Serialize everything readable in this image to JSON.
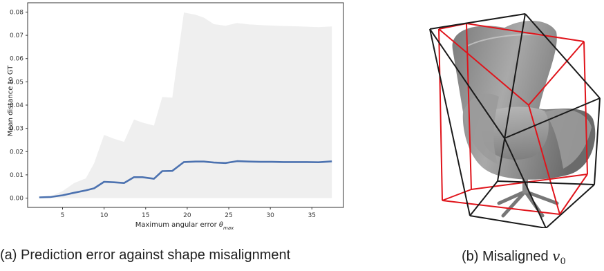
{
  "chart_data": {
    "type": "line",
    "xlabel_prefix": "Maximum angular error ",
    "xlabel_symbol": "θ",
    "xlabel_subscript": "max",
    "ylabel": "Mean distance to GT",
    "xlim": [
      0.8,
      38.8
    ],
    "ylim": [
      -0.004,
      0.084
    ],
    "xticks": [
      5,
      10,
      15,
      20,
      25,
      30,
      35
    ],
    "yticks": [
      0.0,
      0.01,
      0.02,
      0.03,
      0.04,
      0.05,
      0.06,
      0.07,
      0.08
    ],
    "ytick_labels": [
      "0.00",
      "0.01",
      "0.02",
      "0.03",
      "0.04",
      "0.05",
      "0.06",
      "0.07",
      "0.08"
    ],
    "grid": false,
    "x": [
      2.2,
      3.6,
      5.0,
      6.4,
      7.8,
      8.8,
      10.0,
      11.2,
      12.4,
      13.6,
      14.6,
      16.0,
      17.0,
      18.2,
      19.6,
      21.0,
      22.0,
      23.2,
      24.6,
      26.0,
      27.4,
      28.8,
      30.2,
      31.6,
      33.0,
      34.4,
      35.8,
      37.4
    ],
    "series": [
      {
        "values": [
          0.0003,
          0.0005,
          0.0012,
          0.0023,
          0.0033,
          0.0042,
          0.007,
          0.0068,
          0.0065,
          0.009,
          0.009,
          0.0083,
          0.0116,
          0.0117,
          0.0155,
          0.0157,
          0.0157,
          0.0153,
          0.0151,
          0.0159,
          0.0157,
          0.0156,
          0.0156,
          0.0155,
          0.0155,
          0.0155,
          0.0154,
          0.0158
        ],
        "color": "#4c72b0",
        "band_low": [
          0.0,
          0.0,
          0.0,
          0.0,
          0.0,
          0.0,
          0.0,
          0.0,
          0.0,
          0.0,
          0.0,
          0.0,
          0.0,
          0.0,
          0.0,
          0.0,
          0.0,
          0.0,
          0.0,
          0.0,
          0.0,
          0.0,
          0.0,
          0.0,
          0.0,
          0.0,
          0.0,
          0.0
        ],
        "band_high": [
          0.0003,
          0.0008,
          0.003,
          0.0065,
          0.0085,
          0.015,
          0.0272,
          0.0255,
          0.0242,
          0.0338,
          0.0325,
          0.0312,
          0.0435,
          0.0432,
          0.0798,
          0.0789,
          0.0776,
          0.0748,
          0.0741,
          0.0753,
          0.0747,
          0.0744,
          0.0742,
          0.074,
          0.0739,
          0.0737,
          0.0735,
          0.0738
        ],
        "band_color": "#efefef"
      }
    ]
  },
  "captions": {
    "left": "(a) Prediction error against shape misalignment",
    "right_prefix": "(b) Misaligned ",
    "right_symbol": "v",
    "right_subscript": "0"
  },
  "figure_b": {
    "chair_color": "#8a8a8a",
    "box_colors": [
      "#e0141b",
      "#1a1a1a"
    ]
  }
}
